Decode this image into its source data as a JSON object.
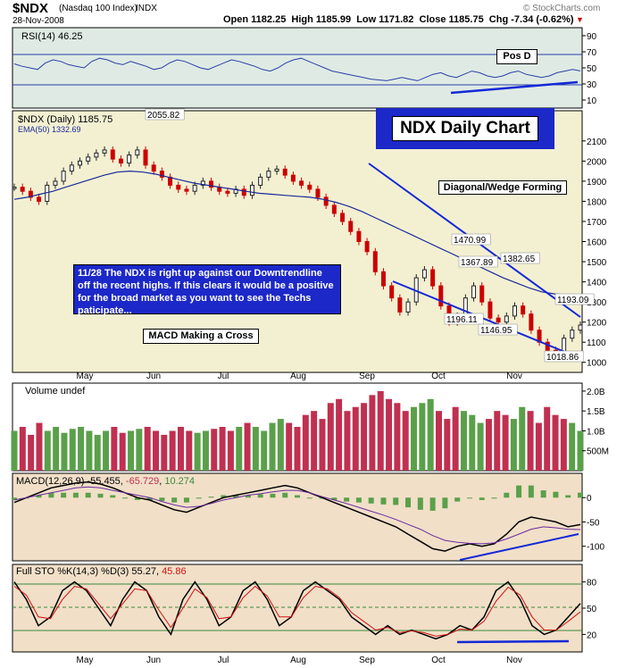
{
  "header": {
    "symbol": "$NDX",
    "name": "(Nasdaq 100 Index)",
    "exchange": "INDX",
    "date": "28-Nov-2008",
    "ohlc": "Open 1182.25  High 1185.99  Low 1171.82  Close 1185.75  Chg -7.34 (-0.62%)",
    "watermark": "© StockCharts.com",
    "down_arrow": "▼"
  },
  "colors": {
    "up": "#222222",
    "down": "#cc0000",
    "ema": "#1a2a9a",
    "trend": "#1428d6",
    "vol_up": "#5aa04a",
    "vol_down": "#c03050",
    "rsi_bg": "#d9e8e2",
    "price_bg": "#f0efd0"
  },
  "chart_data": [
    {
      "type": "line",
      "panel": "rsi",
      "series": [
        {
          "name": "RSI(14)",
          "values": [
            55,
            52,
            50,
            48,
            56,
            60,
            58,
            54,
            52,
            50,
            58,
            62,
            60,
            56,
            54,
            58,
            55,
            52,
            48,
            50,
            56,
            60,
            58,
            54,
            50,
            48,
            52,
            56,
            60,
            58,
            55,
            52,
            48,
            46,
            50,
            56,
            60,
            62,
            58,
            54,
            50,
            46,
            44,
            42,
            40,
            38,
            36,
            35,
            34,
            36,
            38,
            36,
            34,
            38,
            42,
            44,
            40,
            38,
            42,
            46,
            44,
            40,
            38,
            40,
            44,
            46,
            42,
            40,
            38,
            40,
            44,
            46,
            48,
            46.25
          ]
        }
      ],
      "label": "RSI(14) 46.25",
      "ylim": [
        0,
        100
      ],
      "ticks": [
        90,
        70,
        50,
        30,
        10
      ]
    },
    {
      "type": "candlestick",
      "panel": "price",
      "series": [
        {
          "name": "$NDX (Daily)",
          "last": "1185.75",
          "values": [
            1870,
            1850,
            1820,
            1800,
            1880,
            1900,
            1950,
            1980,
            2000,
            2020,
            2040,
            2055,
            2010,
            1990,
            2030,
            2055,
            1980,
            1950,
            1920,
            1880,
            1860,
            1850,
            1880,
            1900,
            1870,
            1850,
            1840,
            1860,
            1830,
            1880,
            1920,
            1950,
            1960,
            1930,
            1900,
            1880,
            1860,
            1820,
            1780,
            1740,
            1700,
            1650,
            1600,
            1550,
            1450,
            1380,
            1320,
            1250,
            1300,
            1420,
            1460,
            1380,
            1280,
            1200,
            1230,
            1320,
            1380,
            1300,
            1220,
            1200,
            1230,
            1280,
            1240,
            1160,
            1100,
            1060,
            1040,
            1120,
            1160,
            1185
          ]
        },
        {
          "name": "EMA(50)",
          "last": "1332.69",
          "values": [
            1810,
            1820,
            1835,
            1850,
            1870,
            1890,
            1910,
            1930,
            1945,
            1950,
            1945,
            1935,
            1920,
            1905,
            1890,
            1880,
            1870,
            1860,
            1850,
            1840,
            1835,
            1830,
            1825,
            1820,
            1810,
            1795,
            1775,
            1750,
            1720,
            1690,
            1660,
            1630,
            1600,
            1570,
            1540,
            1510,
            1480,
            1450,
            1420,
            1395,
            1370,
            1350,
            1340,
            1335,
            1332.69
          ]
        }
      ],
      "ylim": [
        950,
        2250
      ],
      "ticks": [
        2100,
        2000,
        1900,
        1800,
        1700,
        1600,
        1500,
        1400,
        1300,
        1200,
        1100,
        1000
      ],
      "price_labels": [
        "2055.82",
        "1470.99",
        "1367.89",
        "1382.65",
        "1196.11",
        "1146.95",
        "1193.09",
        "1018.86"
      ]
    },
    {
      "type": "bar",
      "panel": "volume",
      "series": [
        {
          "name": "Volume",
          "values": [
            1.0,
            1.1,
            0.9,
            1.2,
            1.0,
            1.1,
            0.95,
            1.05,
            1.1,
            1.0,
            0.9,
            1.0,
            1.1,
            0.95,
            1.0,
            1.05,
            1.1,
            1.0,
            0.9,
            1.0,
            1.1,
            1.0,
            0.95,
            1.0,
            1.05,
            1.1,
            1.0,
            1.1,
            1.2,
            1.1,
            1.0,
            1.2,
            1.3,
            1.2,
            1.1,
            1.4,
            1.5,
            1.3,
            1.7,
            1.8,
            1.5,
            1.6,
            1.7,
            1.9,
            2.0,
            1.8,
            1.7,
            1.5,
            1.6,
            1.7,
            1.8,
            1.5,
            1.3,
            1.6,
            1.5,
            1.4,
            1.2,
            1.3,
            1.5,
            1.4,
            1.3,
            1.6,
            1.5,
            1.2,
            1.6,
            1.4,
            1.3,
            1.2,
            1.0
          ]
        }
      ],
      "label": "Volume undef",
      "ticks": [
        "2.0B",
        "1.5B",
        "1.0B",
        "500M"
      ],
      "ylim": [
        0,
        2.2
      ]
    },
    {
      "type": "line",
      "panel": "macd",
      "series": [
        {
          "name": "MACD(12,26,9)",
          "last": "-55.455",
          "values": [
            -10,
            0,
            10,
            20,
            25,
            30,
            32,
            28,
            20,
            10,
            0,
            -5,
            -15,
            -25,
            -30,
            -20,
            -10,
            0,
            5,
            10,
            15,
            20,
            25,
            20,
            10,
            0,
            -10,
            -20,
            -30,
            -40,
            -50,
            -60,
            -75,
            -90,
            -105,
            -110,
            -100,
            -95,
            -100,
            -95,
            -75,
            -50,
            -40,
            -45,
            -50,
            -60,
            -55.455
          ]
        },
        {
          "name": "Signal",
          "last": "-65.729",
          "values": [
            -5,
            0,
            5,
            10,
            15,
            20,
            22,
            20,
            15,
            10,
            5,
            0,
            -8,
            -15,
            -20,
            -18,
            -12,
            -5,
            0,
            5,
            8,
            12,
            15,
            15,
            10,
            2,
            -5,
            -12,
            -20,
            -28,
            -36,
            -45,
            -55,
            -65,
            -78,
            -88,
            -92,
            -94,
            -95,
            -93,
            -85,
            -75,
            -65,
            -60,
            -62,
            -65,
            -65.729
          ]
        },
        {
          "name": "Histogram",
          "last": "10.274",
          "values": []
        }
      ],
      "ticks": [
        "0",
        "-50",
        "-100"
      ],
      "ylim": [
        -130,
        50
      ]
    },
    {
      "type": "line",
      "panel": "stochastic",
      "series": [
        {
          "name": "Full STO %K(14,3)",
          "last": "55.27",
          "values": [
            80,
            60,
            30,
            40,
            70,
            80,
            70,
            50,
            30,
            60,
            80,
            70,
            40,
            20,
            60,
            80,
            60,
            30,
            40,
            70,
            80,
            60,
            30,
            40,
            70,
            80,
            70,
            60,
            40,
            30,
            20,
            30,
            20,
            25,
            20,
            15,
            20,
            30,
            25,
            40,
            70,
            80,
            60,
            30,
            20,
            25,
            40,
            55.27
          ]
        },
        {
          "name": "%D(3)",
          "last": "45.86",
          "values": [
            75,
            65,
            40,
            38,
            60,
            75,
            72,
            55,
            38,
            55,
            72,
            70,
            48,
            28,
            50,
            72,
            62,
            38,
            40,
            62,
            75,
            64,
            40,
            40,
            62,
            75,
            72,
            62,
            45,
            35,
            25,
            28,
            22,
            24,
            22,
            18,
            20,
            26,
            25,
            35,
            58,
            74,
            65,
            40,
            25,
            25,
            35,
            45.86
          ]
        }
      ],
      "ylim": [
        0,
        100
      ],
      "ticks": [
        80,
        50,
        20
      ]
    }
  ],
  "annotations": {
    "pos_d": "Pos D",
    "chart_title": "NDX Daily Chart",
    "wedge": "Diagonal/Wedge Forming",
    "comment": "11/28  The NDX is right up against our Downtrendline off the recent highs.  If this clears it would be a positive for the broad market as you want to see the Techs paticipate...",
    "macd_note": "MACD Making a Cross"
  },
  "x_axis_months": [
    "May",
    "Jun",
    "Jul",
    "Aug",
    "Sep",
    "Oct",
    "Nov"
  ]
}
